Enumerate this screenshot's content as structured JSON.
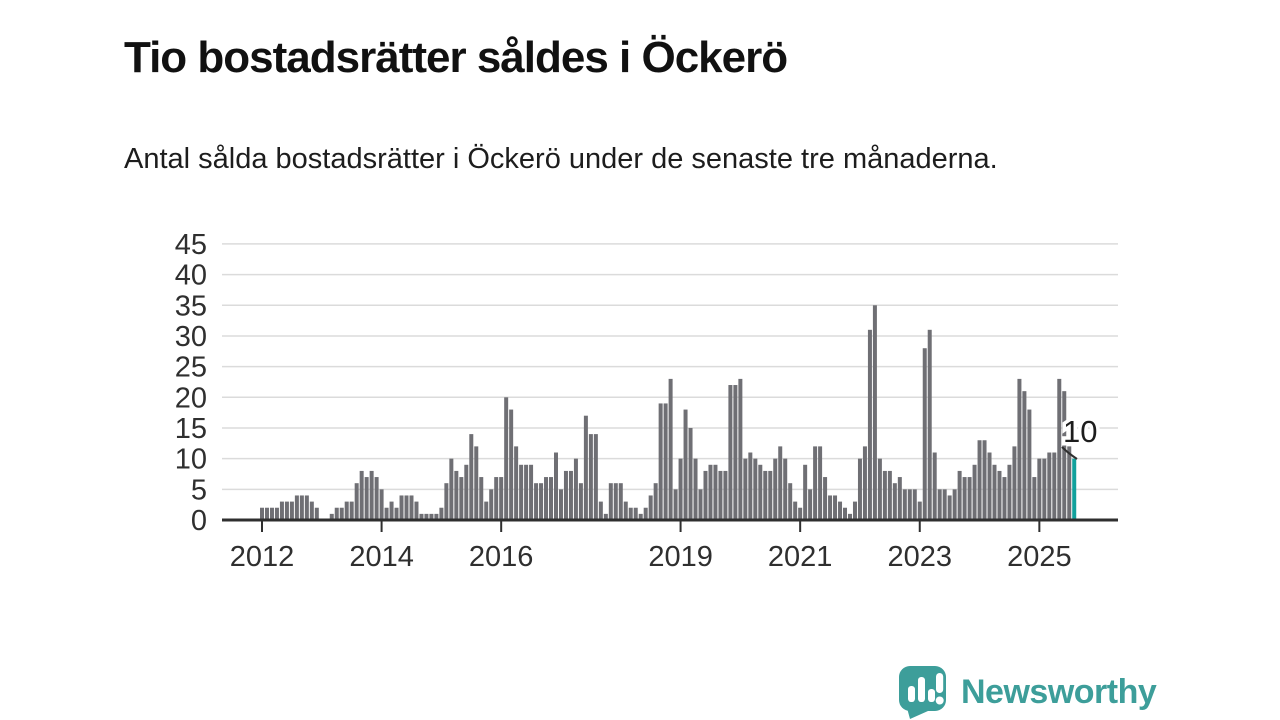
{
  "chart_data": {
    "type": "bar",
    "title": "Tio bostadsrätter såldes i Öckerö",
    "subtitle": "Antal sålda bostadsrätter i Öckerö under de senaste tre månaderna.",
    "frequency": "monthly",
    "x_start_month": "2012-01",
    "values": [
      2,
      2,
      2,
      2,
      3,
      3,
      3,
      4,
      4,
      4,
      3,
      2,
      0,
      0,
      1,
      2,
      2,
      3,
      3,
      6,
      8,
      7,
      8,
      7,
      5,
      2,
      3,
      2,
      4,
      4,
      4,
      3,
      1,
      1,
      1,
      1,
      2,
      6,
      10,
      8,
      7,
      9,
      14,
      12,
      7,
      3,
      5,
      7,
      7,
      20,
      18,
      12,
      9,
      9,
      9,
      6,
      6,
      7,
      7,
      11,
      5,
      8,
      8,
      10,
      6,
      17,
      14,
      14,
      3,
      1,
      6,
      6,
      6,
      3,
      2,
      2,
      1,
      2,
      4,
      6,
      19,
      19,
      23,
      5,
      10,
      18,
      15,
      10,
      5,
      8,
      9,
      9,
      8,
      8,
      22,
      22,
      23,
      10,
      11,
      10,
      9,
      8,
      8,
      10,
      12,
      10,
      6,
      3,
      2,
      9,
      5,
      12,
      12,
      7,
      4,
      4,
      3,
      2,
      1,
      3,
      10,
      12,
      31,
      35,
      10,
      8,
      8,
      6,
      7,
      5,
      5,
      5,
      3,
      28,
      31,
      11,
      5,
      5,
      4,
      5,
      8,
      7,
      7,
      9,
      13,
      13,
      11,
      9,
      8,
      7,
      9,
      12,
      23,
      21,
      18,
      7,
      10,
      10,
      11,
      11,
      23,
      21,
      12,
      10
    ],
    "highlight_last": true,
    "annotation": {
      "text": "10",
      "value": 10
    },
    "ylim": [
      0,
      45
    ],
    "yticks": [
      0,
      5,
      10,
      15,
      20,
      25,
      30,
      35,
      40,
      45
    ],
    "x_ticks": [
      {
        "label": "2012",
        "month": 0
      },
      {
        "label": "2014",
        "month": 24
      },
      {
        "label": "2016",
        "month": 48
      },
      {
        "label": "2019",
        "month": 84
      },
      {
        "label": "2021",
        "month": 108
      },
      {
        "label": "2023",
        "month": 132
      },
      {
        "label": "2025",
        "month": 156
      }
    ],
    "grid": true,
    "legend": "none",
    "bar_color": "#6f6f74",
    "highlight_color": "#11a19c",
    "axis_color": "#2f2f2f",
    "grid_color": "#dbdbdb"
  },
  "logo": {
    "text": "Newsworthy",
    "color": "#3d9e9a",
    "icon": "newsworthy-chart-bubble-icon"
  }
}
